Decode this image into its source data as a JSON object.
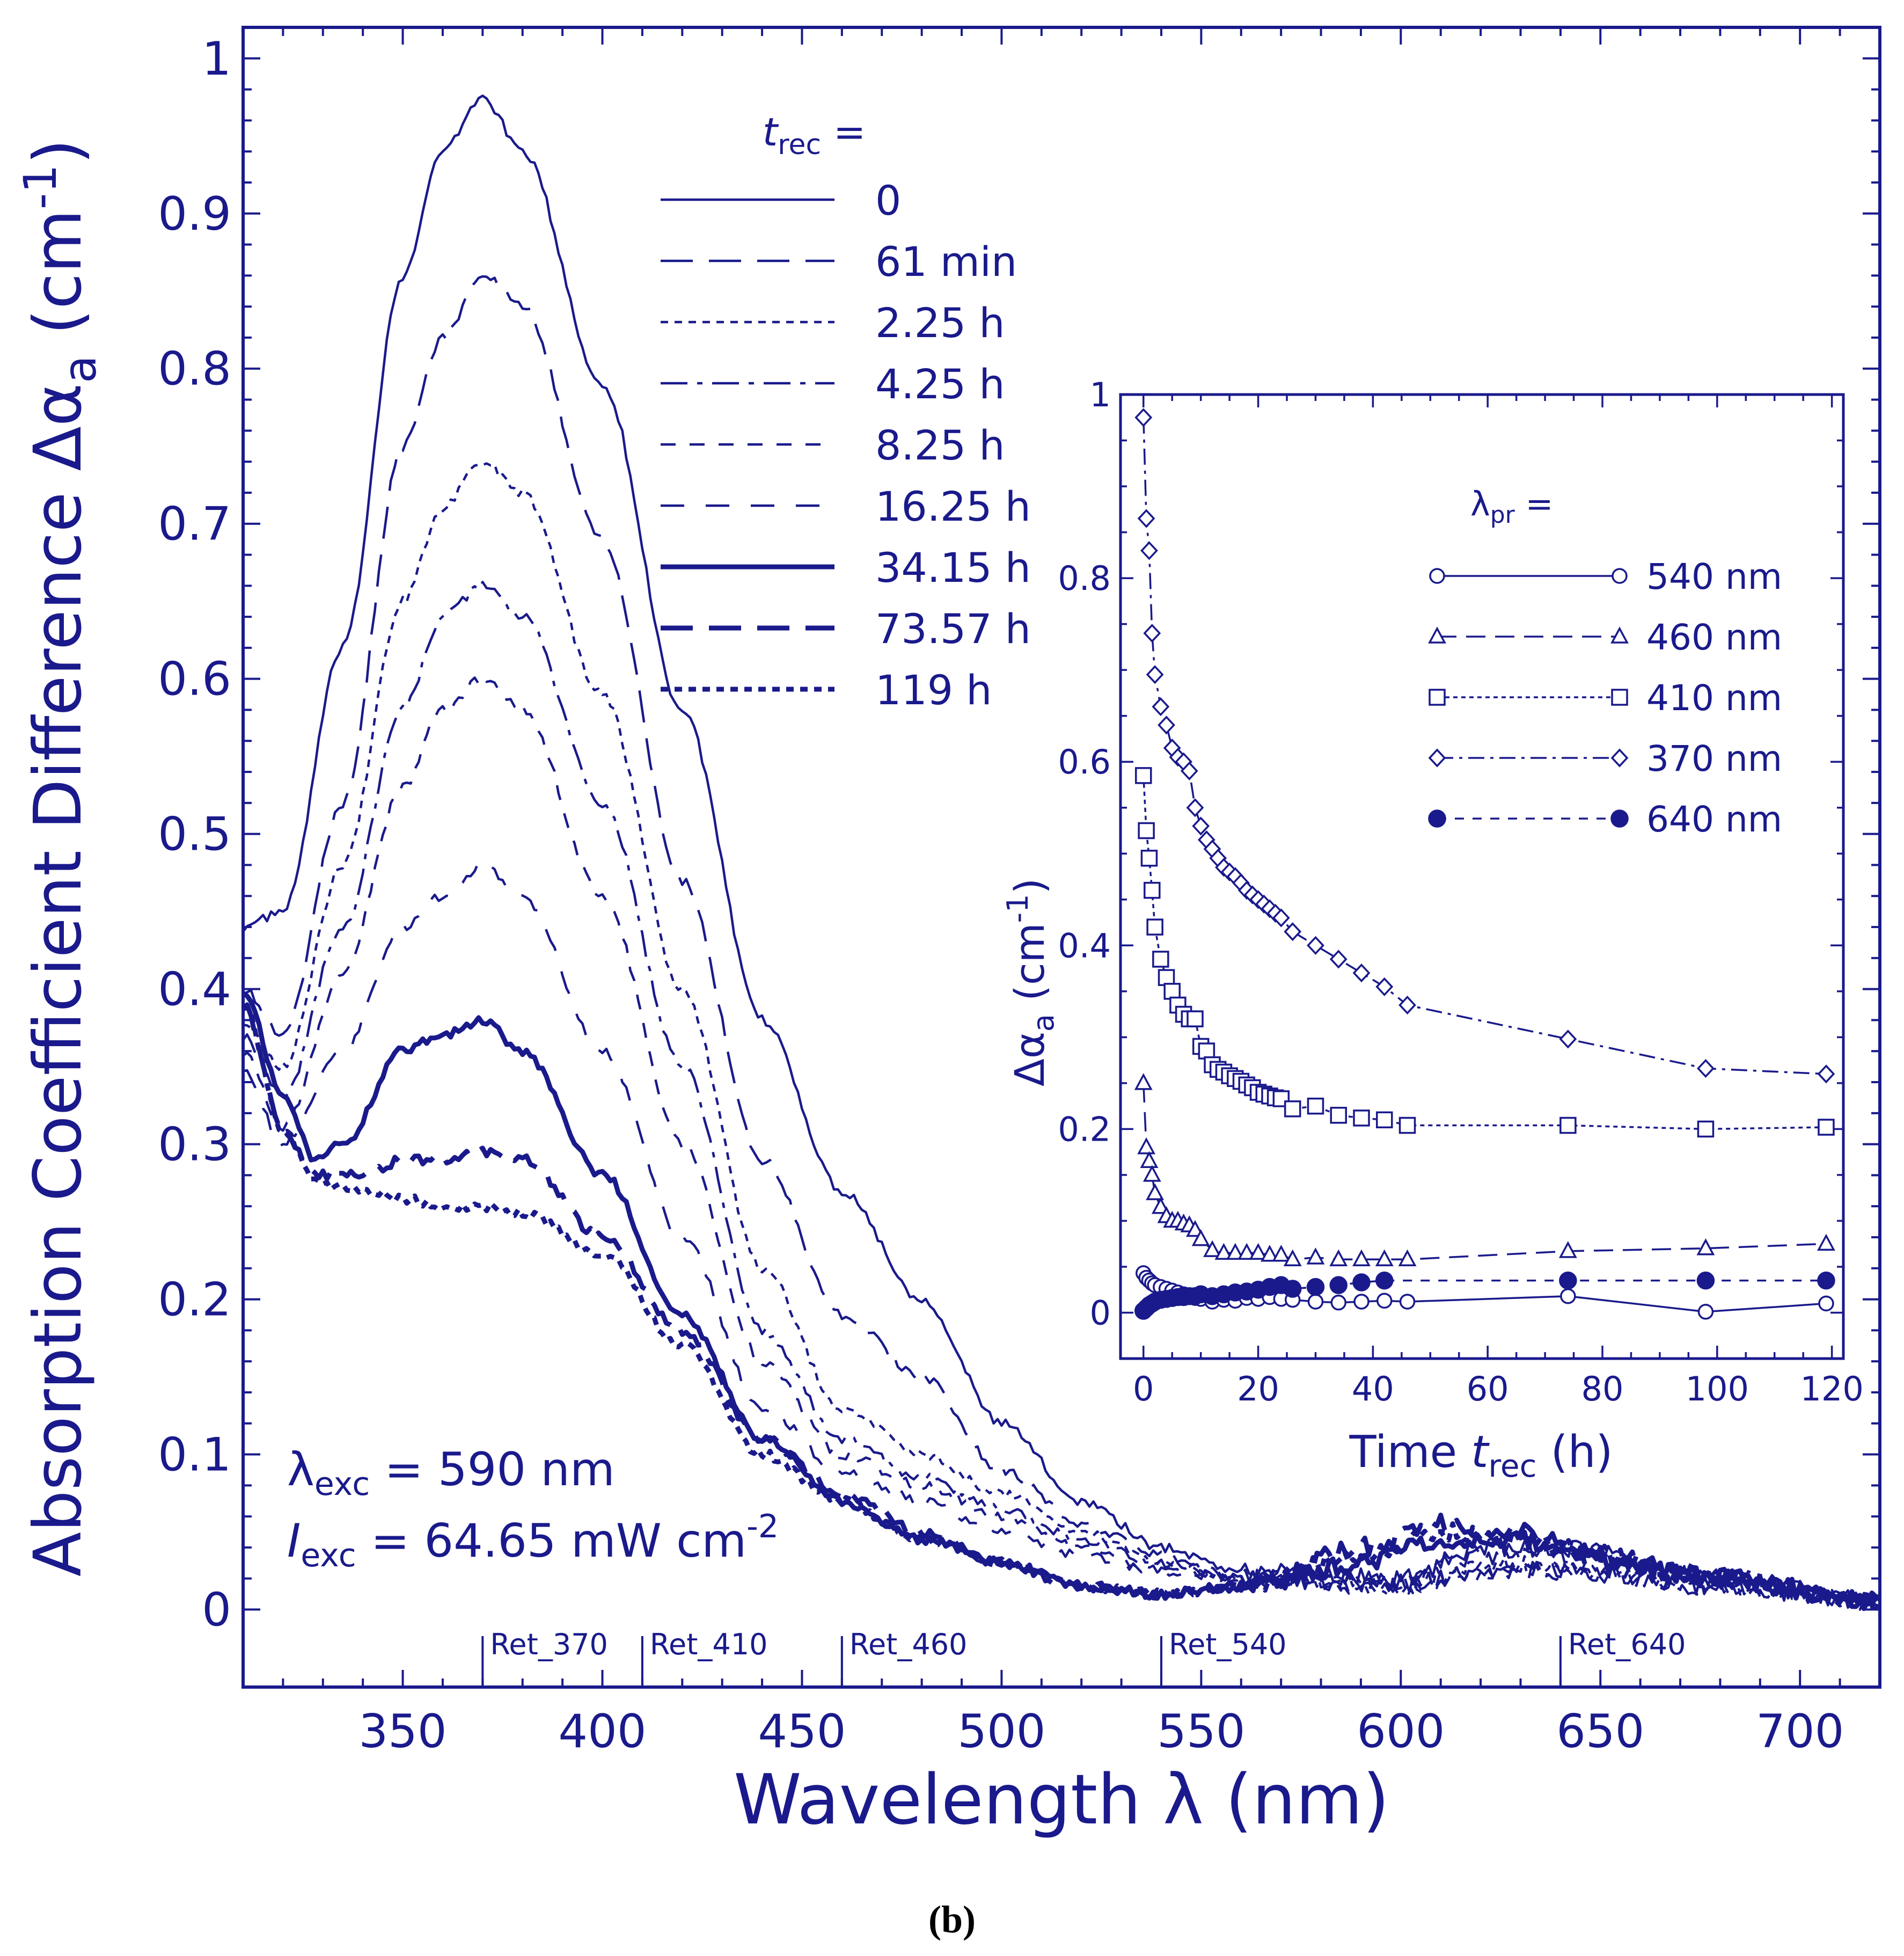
{
  "caption": "(b)",
  "colors": {
    "ink": "#1a1a8c",
    "caption": "#000000",
    "background": "#ffffff"
  },
  "chart_data": [
    {
      "type": "line",
      "title": "",
      "xlabel": {
        "main": "Wavelength",
        "symbol": "λ",
        "unit": "(nm)"
      },
      "ylabel": {
        "main": "Absorption Coefficient Difference",
        "symbol": "Δα",
        "sub": "a",
        "unit_open": "(cm",
        "unit_exp": "-1",
        "unit_close": ")"
      },
      "xlim": [
        310,
        720
      ],
      "ylim": [
        -0.05,
        1.02
      ],
      "xticks": [
        350,
        400,
        450,
        500,
        550,
        600,
        650,
        700
      ],
      "yticks": [
        0,
        0.1,
        0.2,
        0.3,
        0.4,
        0.5,
        0.6,
        0.7,
        0.8,
        0.9,
        1
      ],
      "ytick_labels": [
        "0",
        "0.1",
        "0.2",
        "0.3",
        "0.4",
        "0.5",
        "0.6",
        "0.7",
        "0.8",
        "0.9",
        "1"
      ],
      "grid": false,
      "legend": {
        "position": "top-center",
        "header": "t",
        "header_sub": "rec",
        "header_suffix": " ="
      },
      "series": [
        {
          "name": "0",
          "style": "solid",
          "width": "thin",
          "values_at": {
            "310": 0.44,
            "320": 0.45,
            "335": 0.62,
            "350": 0.86,
            "360": 0.94,
            "370": 0.975,
            "380": 0.94,
            "400": 0.79,
            "420": 0.58,
            "440": 0.38,
            "460": 0.27,
            "480": 0.2,
            "500": 0.12,
            "520": 0.07,
            "540": 0.04,
            "560": 0.025,
            "600": 0.02,
            "620": 0.04,
            "640": 0.04,
            "680": 0.02,
            "720": 0.005
          }
        },
        {
          "name": "61 min",
          "style": "long-dash",
          "width": "thin",
          "values_at": {
            "310": 0.4,
            "320": 0.37,
            "335": 0.52,
            "350": 0.75,
            "360": 0.82,
            "370": 0.86,
            "380": 0.84,
            "400": 0.69,
            "420": 0.47,
            "440": 0.29,
            "460": 0.19,
            "480": 0.15,
            "500": 0.09,
            "520": 0.055,
            "540": 0.035,
            "560": 0.02,
            "600": 0.02,
            "620": 0.035,
            "640": 0.035,
            "680": 0.02,
            "720": 0.005
          }
        },
        {
          "name": "2.25 h",
          "style": "short-dash",
          "width": "thin",
          "values_at": {
            "310": 0.38,
            "320": 0.35,
            "335": 0.48,
            "350": 0.65,
            "360": 0.71,
            "370": 0.74,
            "380": 0.72,
            "400": 0.59,
            "420": 0.4,
            "440": 0.22,
            "460": 0.13,
            "480": 0.1,
            "500": 0.075,
            "520": 0.05,
            "540": 0.03,
            "560": 0.02,
            "600": 0.015,
            "620": 0.03,
            "640": 0.03,
            "680": 0.015,
            "720": 0.005
          }
        },
        {
          "name": "4.25 h",
          "style": "dash-dot",
          "width": "thin",
          "values_at": {
            "310": 0.37,
            "320": 0.33,
            "335": 0.44,
            "350": 0.58,
            "360": 0.64,
            "370": 0.66,
            "380": 0.64,
            "400": 0.52,
            "420": 0.35,
            "440": 0.18,
            "460": 0.11,
            "480": 0.085,
            "500": 0.065,
            "520": 0.045,
            "540": 0.03,
            "560": 0.02,
            "600": 0.015,
            "620": 0.025,
            "640": 0.025,
            "680": 0.015,
            "720": 0.005
          }
        },
        {
          "name": "8.25 h",
          "style": "medium-dash",
          "width": "thin",
          "values_at": {
            "310": 0.36,
            "320": 0.31,
            "335": 0.41,
            "350": 0.53,
            "360": 0.58,
            "370": 0.6,
            "380": 0.58,
            "400": 0.46,
            "420": 0.3,
            "440": 0.16,
            "460": 0.1,
            "480": 0.08,
            "500": 0.06,
            "520": 0.04,
            "540": 0.025,
            "560": 0.02,
            "600": 0.015,
            "620": 0.025,
            "640": 0.025,
            "680": 0.015,
            "720": 0.005
          }
        },
        {
          "name": "16.25 h",
          "style": "dash-gap",
          "width": "thin",
          "values_at": {
            "310": 0.35,
            "320": 0.3,
            "335": 0.36,
            "350": 0.44,
            "360": 0.46,
            "370": 0.48,
            "380": 0.46,
            "400": 0.36,
            "420": 0.24,
            "440": 0.13,
            "460": 0.09,
            "480": 0.07,
            "500": 0.05,
            "520": 0.035,
            "540": 0.025,
            "560": 0.02,
            "600": 0.015,
            "620": 0.025,
            "640": 0.025,
            "680": 0.015,
            "720": 0.005
          }
        },
        {
          "name": "34.15 h",
          "style": "solid",
          "width": "thick",
          "values_at": {
            "310": 0.4,
            "320": 0.33,
            "328": 0.29,
            "335": 0.3,
            "350": 0.36,
            "360": 0.37,
            "370": 0.38,
            "380": 0.36,
            "400": 0.28,
            "420": 0.19,
            "440": 0.11,
            "460": 0.07,
            "480": 0.045,
            "500": 0.03,
            "520": 0.015,
            "540": 0.01,
            "560": 0.015,
            "590": 0.03,
            "610": 0.045,
            "630": 0.045,
            "650": 0.03,
            "680": 0.02,
            "720": 0.005
          }
        },
        {
          "name": "73.57 h",
          "style": "long-dash",
          "width": "thick",
          "values_at": {
            "310": 0.39,
            "320": 0.31,
            "328": 0.28,
            "340": 0.28,
            "350": 0.29,
            "360": 0.29,
            "370": 0.295,
            "380": 0.29,
            "400": 0.24,
            "420": 0.18,
            "440": 0.11,
            "460": 0.075,
            "480": 0.05,
            "500": 0.03,
            "520": 0.015,
            "540": 0.01,
            "560": 0.015,
            "590": 0.04,
            "610": 0.055,
            "630": 0.05,
            "650": 0.035,
            "680": 0.02,
            "720": 0.005
          }
        },
        {
          "name": "119 h",
          "style": "short-dash",
          "width": "thick",
          "values_at": {
            "310": 0.39,
            "320": 0.31,
            "328": 0.275,
            "340": 0.27,
            "350": 0.265,
            "360": 0.26,
            "370": 0.26,
            "380": 0.255,
            "400": 0.23,
            "420": 0.17,
            "440": 0.1,
            "460": 0.07,
            "480": 0.045,
            "500": 0.03,
            "520": 0.015,
            "540": 0.01,
            "560": 0.015,
            "590": 0.035,
            "610": 0.05,
            "630": 0.045,
            "650": 0.035,
            "680": 0.02,
            "720": 0.005
          }
        }
      ],
      "markers": [
        {
          "label": "Ret_370",
          "x": 370
        },
        {
          "label": "Ret_410",
          "x": 410
        },
        {
          "label": "Ret_460",
          "x": 460
        },
        {
          "label": "Ret_540",
          "x": 540
        },
        {
          "label": "Ret_640",
          "x": 640
        }
      ],
      "annotations": {
        "exc_wavelength": {
          "symbol": "λ",
          "sub": "exc",
          "value": " = 590 nm"
        },
        "exc_intensity": {
          "symbol": "I",
          "sub": "exc",
          "value": " = 64.65 mW cm",
          "exp": "-2"
        }
      }
    },
    {
      "type": "line",
      "subtype": "line-with-markers",
      "title": "",
      "xlabel": {
        "main": "Time ",
        "symbol": "t",
        "sub": "rec",
        "unit": "  (h)"
      },
      "ylabel": {
        "symbol": "Δα",
        "sub": "a",
        "unit_open": "  (cm",
        "unit_exp": "-1",
        "unit_close": ")"
      },
      "xlim": [
        -4,
        122
      ],
      "ylim": [
        -0.05,
        1.0
      ],
      "xticks": [
        0,
        20,
        40,
        60,
        80,
        100,
        120
      ],
      "yticks": [
        0,
        0.2,
        0.4,
        0.6,
        0.8,
        1
      ],
      "ytick_labels": [
        "0",
        "0.2",
        "0.4",
        "0.6",
        "0.8",
        "1"
      ],
      "grid": false,
      "legend": {
        "position": "top-right",
        "header": "λ",
        "header_sub": "pr",
        "header_suffix": " ="
      },
      "series": [
        {
          "name": "540 nm",
          "marker": "open-circle",
          "style": "solid",
          "x": [
            0,
            0.5,
            1,
            1.5,
            2,
            3,
            4,
            5,
            6,
            7,
            8,
            9,
            10,
            12,
            14,
            16,
            18,
            20,
            22,
            24,
            26,
            30,
            34,
            38,
            42,
            46,
            74,
            98,
            119
          ],
          "y": [
            0.043,
            0.038,
            0.035,
            0.032,
            0.03,
            0.028,
            0.026,
            0.024,
            0.022,
            0.02,
            0.018,
            0.016,
            0.015,
            0.012,
            0.014,
            0.013,
            0.016,
            0.015,
            0.017,
            0.015,
            0.014,
            0.012,
            0.011,
            0.012,
            0.013,
            0.012,
            0.018,
            0.001,
            0.01
          ]
        },
        {
          "name": "460 nm",
          "marker": "open-triangle",
          "style": "long-dash",
          "x": [
            0,
            0.5,
            1,
            1.5,
            2,
            3,
            4,
            5,
            6,
            7,
            8,
            9,
            10,
            12,
            14,
            16,
            18,
            20,
            22,
            24,
            26,
            30,
            34,
            38,
            42,
            46,
            74,
            98,
            119
          ],
          "y": [
            0.25,
            0.18,
            0.165,
            0.15,
            0.13,
            0.115,
            0.105,
            0.1,
            0.1,
            0.097,
            0.095,
            0.09,
            0.08,
            0.068,
            0.065,
            0.065,
            0.065,
            0.065,
            0.063,
            0.063,
            0.058,
            0.06,
            0.058,
            0.058,
            0.058,
            0.058,
            0.067,
            0.07,
            0.075
          ]
        },
        {
          "name": "410 nm",
          "marker": "open-square",
          "style": "short-dash",
          "x": [
            0,
            0.5,
            1,
            1.5,
            2,
            3,
            4,
            5,
            6,
            7,
            8,
            9,
            10,
            11,
            12,
            13,
            14,
            15,
            16,
            17,
            18,
            19,
            20,
            21,
            22,
            23,
            24,
            26,
            30,
            34,
            38,
            42,
            46,
            74,
            98,
            119
          ],
          "y": [
            0.585,
            0.525,
            0.495,
            0.46,
            0.42,
            0.385,
            0.365,
            0.35,
            0.335,
            0.325,
            0.32,
            0.32,
            0.29,
            0.285,
            0.27,
            0.265,
            0.262,
            0.258,
            0.255,
            0.252,
            0.248,
            0.245,
            0.24,
            0.238,
            0.236,
            0.234,
            0.233,
            0.222,
            0.225,
            0.215,
            0.212,
            0.21,
            0.204,
            0.204,
            0.2,
            0.202
          ]
        },
        {
          "name": "370 nm",
          "marker": "open-diamond",
          "style": "dash-dot",
          "x": [
            0,
            0.5,
            1,
            1.5,
            2,
            3,
            4,
            5,
            6,
            7,
            8,
            9,
            10,
            11,
            12,
            13,
            14,
            15,
            16,
            17,
            18,
            19,
            20,
            21,
            22,
            23,
            24,
            26,
            30,
            34,
            38,
            42,
            46,
            74,
            98,
            119
          ],
          "y": [
            0.975,
            0.865,
            0.83,
            0.74,
            0.695,
            0.66,
            0.64,
            0.615,
            0.605,
            0.6,
            0.59,
            0.55,
            0.53,
            0.515,
            0.505,
            0.495,
            0.485,
            0.48,
            0.475,
            0.468,
            0.46,
            0.455,
            0.45,
            0.445,
            0.44,
            0.435,
            0.43,
            0.415,
            0.4,
            0.385,
            0.37,
            0.355,
            0.335,
            0.298,
            0.266,
            0.26
          ]
        },
        {
          "name": "640 nm",
          "marker": "filled-circle",
          "style": "medium-dash",
          "x": [
            0,
            0.5,
            1,
            1.5,
            2,
            3,
            4,
            5,
            6,
            7,
            8,
            9,
            10,
            12,
            14,
            16,
            18,
            20,
            22,
            24,
            26,
            30,
            34,
            38,
            42,
            74,
            98,
            119
          ],
          "y": [
            0.002,
            0.005,
            0.008,
            0.01,
            0.012,
            0.014,
            0.015,
            0.016,
            0.017,
            0.017,
            0.018,
            0.018,
            0.02,
            0.018,
            0.02,
            0.022,
            0.023,
            0.025,
            0.028,
            0.03,
            0.026,
            0.028,
            0.03,
            0.033,
            0.035,
            0.035,
            0.035,
            0.035
          ]
        }
      ]
    }
  ]
}
